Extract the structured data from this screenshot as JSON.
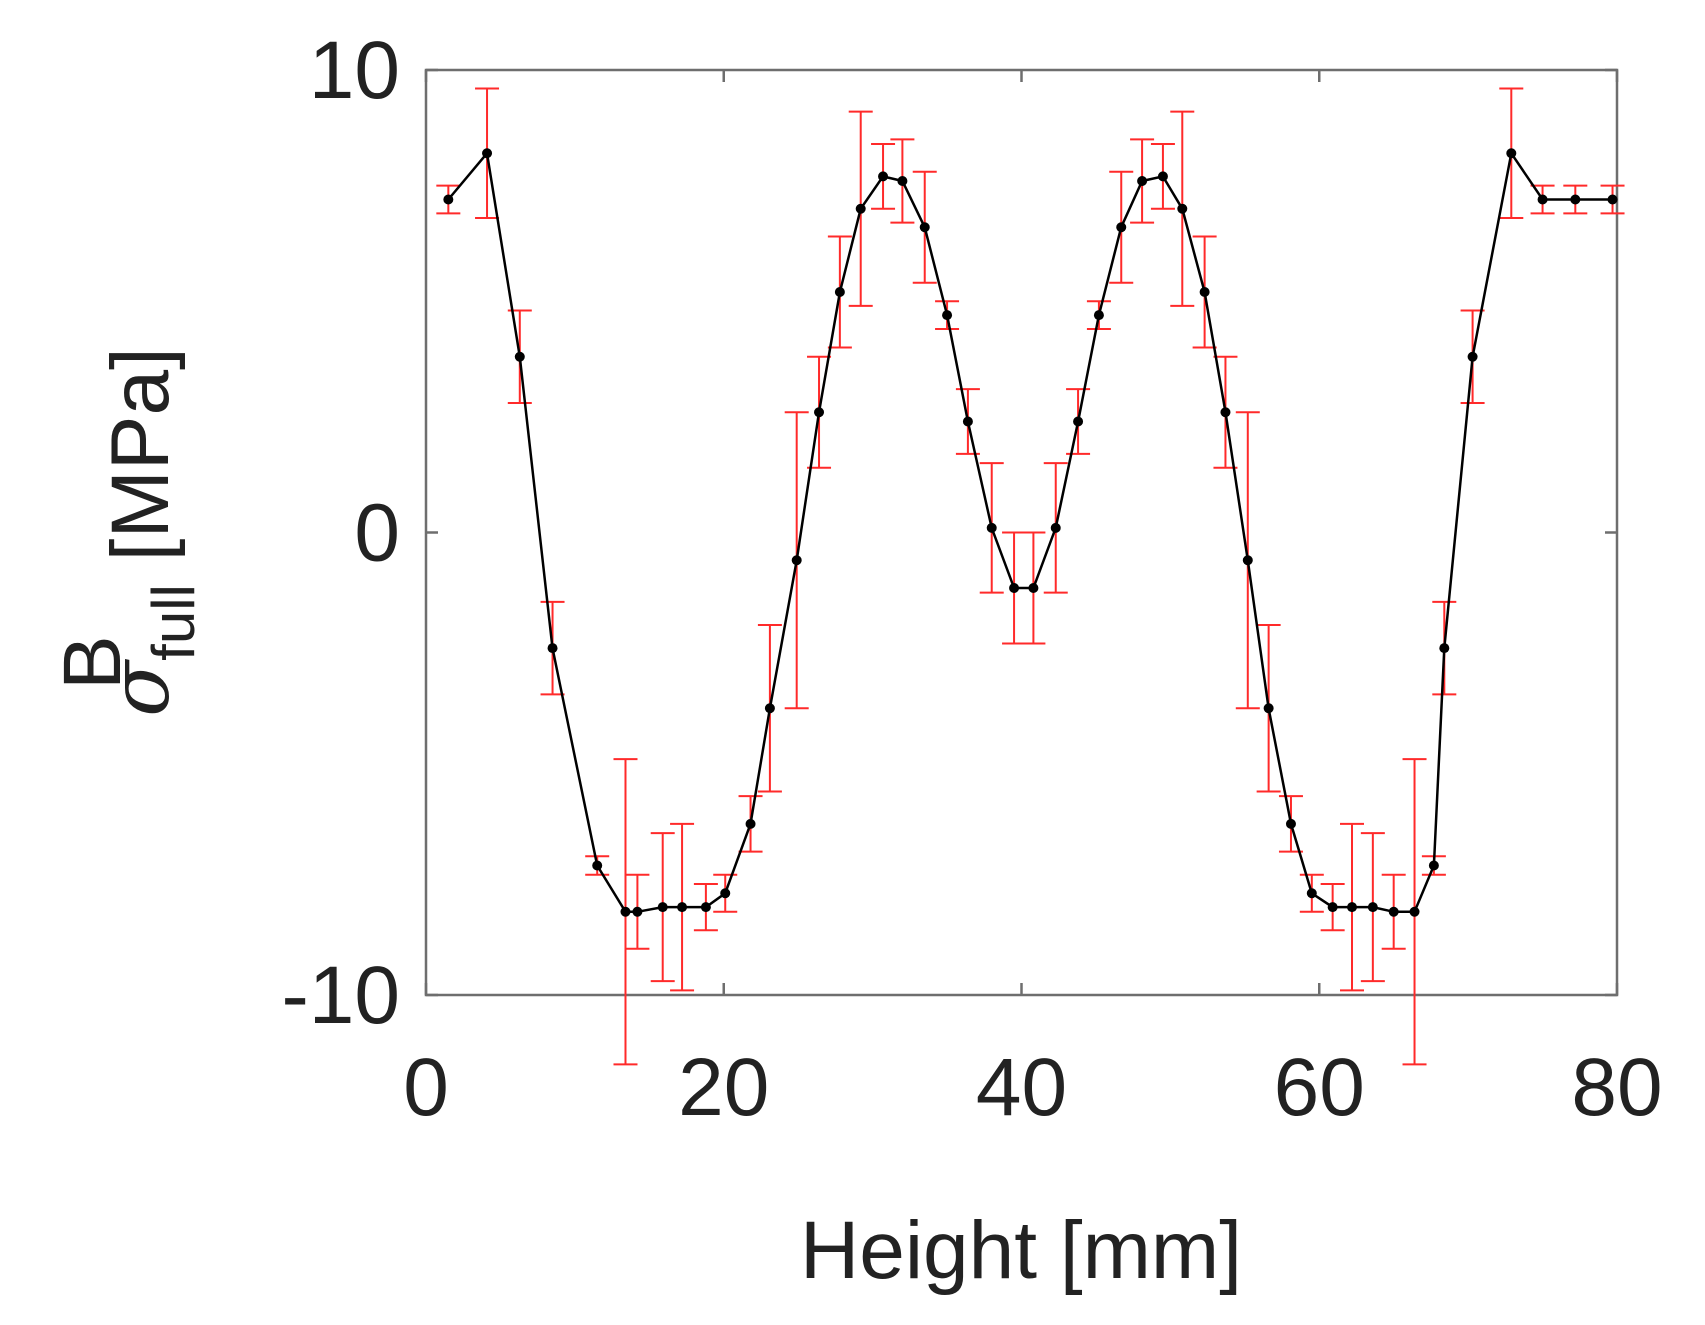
{
  "chart_data": {
    "type": "line",
    "title": "",
    "xlabel": "Height [mm]",
    "ylabel": {
      "symbol": "σ",
      "superscript": "B",
      "subscript": "full",
      "unit": "[MPa]"
    },
    "xlim": [
      0,
      80
    ],
    "ylim": [
      -10,
      10
    ],
    "xticks": [
      "0",
      "20",
      "40",
      "60",
      "80"
    ],
    "yticks": [
      "-10",
      "0",
      "10"
    ],
    "grid": false,
    "legend": "none",
    "colors": {
      "line": "#000000",
      "marker": "#000000",
      "error_bar": "#ff2a2a"
    },
    "series": [
      {
        "x": [
          1.5,
          4.1,
          6.3,
          8.5,
          11.5,
          13.4,
          14.2,
          15.9,
          17.2,
          18.8,
          20.1,
          21.8,
          23.1,
          24.9,
          26.4,
          27.8,
          29.2,
          30.7,
          32.0,
          33.5,
          35.0,
          36.4,
          38.0,
          39.5,
          40.8,
          42.3,
          43.8,
          45.2,
          46.7,
          48.1,
          49.5,
          50.8,
          52.3,
          53.7,
          55.2,
          56.6,
          58.1,
          59.5,
          60.9,
          62.2,
          63.6,
          65.0,
          66.4,
          67.7,
          68.4,
          70.3,
          72.9,
          75.0,
          77.2,
          79.7
        ],
        "y": [
          7.2,
          8.2,
          3.8,
          -2.5,
          -7.2,
          -8.2,
          -8.2,
          -8.1,
          -8.1,
          -8.1,
          -7.8,
          -6.3,
          -3.8,
          -0.6,
          2.6,
          5.2,
          7.0,
          7.7,
          7.6,
          6.6,
          4.7,
          2.4,
          0.1,
          -1.2,
          -1.2,
          0.1,
          2.4,
          4.7,
          6.6,
          7.6,
          7.7,
          7.0,
          5.2,
          2.6,
          -0.6,
          -3.8,
          -6.3,
          -7.8,
          -8.1,
          -8.1,
          -8.1,
          -8.2,
          -8.2,
          -7.2,
          -2.5,
          3.8,
          8.2,
          7.2,
          7.2,
          7.2
        ],
        "err": [
          0.3,
          1.4,
          1.0,
          1.0,
          0.2,
          3.3,
          0.8,
          1.6,
          1.8,
          0.5,
          0.4,
          0.6,
          1.8,
          3.2,
          1.2,
          1.2,
          2.1,
          0.7,
          0.9,
          1.2,
          0.3,
          0.7,
          1.4,
          1.2,
          1.2,
          1.4,
          0.7,
          0.3,
          1.2,
          0.9,
          0.7,
          2.1,
          1.2,
          1.2,
          3.2,
          1.8,
          0.6,
          0.4,
          0.5,
          1.8,
          1.6,
          0.8,
          3.3,
          0.2,
          1.0,
          1.0,
          1.4,
          0.3,
          0.3,
          0.3
        ]
      }
    ]
  }
}
